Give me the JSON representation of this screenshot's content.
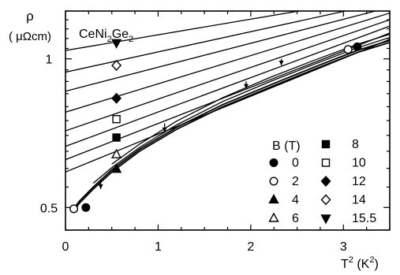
{
  "chart_data": {
    "type": "line",
    "title": "CeNi2Ge2",
    "title_main": "CeNi",
    "title_sub1": "2",
    "title_mid": "Ge",
    "title_sub2": "2",
    "ylabel_symbol": "ρ",
    "ylabel_unit": "( μΩcm)",
    "xlabel_text": "T",
    "xlabel_sup1": "2",
    "xlabel_mid": " (K",
    "xlabel_sup2": "2",
    "xlabel_end": ")",
    "xlim": [
      0,
      3.5
    ],
    "ylim": [
      0.45,
      1.25
    ],
    "y_scale": "log",
    "x_ticks": [
      {
        "value": 0,
        "label": "0"
      },
      {
        "value": 1,
        "label": "1"
      },
      {
        "value": 2,
        "label": "2"
      },
      {
        "value": 3,
        "label": "3"
      }
    ],
    "y_ticks": [
      {
        "value": 0.5,
        "label": "0.5"
      },
      {
        "value": 1,
        "label": "1"
      }
    ],
    "legend": {
      "title": "B (T)",
      "placement": "bottom-right",
      "entries": [
        {
          "label": "0",
          "marker": "filled-circle"
        },
        {
          "label": "2",
          "marker": "open-circle"
        },
        {
          "label": "4",
          "marker": "filled-triangle-up"
        },
        {
          "label": "6",
          "marker": "open-triangle-up"
        },
        {
          "label": "8",
          "marker": "filled-square"
        },
        {
          "label": "10",
          "marker": "open-square"
        },
        {
          "label": "12",
          "marker": "filled-diamond"
        },
        {
          "label": "14",
          "marker": "open-diamond"
        },
        {
          "label": "15.5",
          "marker": "filled-triangle-down"
        }
      ]
    },
    "series": [
      {
        "name": "0",
        "marker": "filled-circle",
        "points": [
          [
            0.22,
            0.5
          ],
          [
            3.15,
            1.058
          ]
        ]
      },
      {
        "name": "2",
        "marker": "open-circle",
        "points": [
          [
            0.09,
            0.497
          ],
          [
            3.05,
            1.045
          ]
        ]
      },
      {
        "name": "4",
        "marker": "filled-triangle-up",
        "points": [
          [
            0.55,
            0.598
          ]
        ]
      },
      {
        "name": "6",
        "marker": "open-triangle-up",
        "points": [
          [
            0.55,
            0.64
          ]
        ]
      },
      {
        "name": "8",
        "marker": "filled-square",
        "points": [
          [
            0.55,
            0.693
          ]
        ]
      },
      {
        "name": "10",
        "marker": "open-square",
        "points": [
          [
            0.55,
            0.755
          ]
        ]
      },
      {
        "name": "12",
        "marker": "filled-diamond",
        "points": [
          [
            0.55,
            0.832
          ]
        ]
      },
      {
        "name": "14",
        "marker": "open-diamond",
        "points": [
          [
            0.55,
            0.97
          ]
        ]
      },
      {
        "name": "15.5",
        "marker": "filled-triangle-down",
        "points": [
          [
            0.55,
            1.078
          ]
        ]
      }
    ],
    "fit_lines": [
      {
        "x0": 0,
        "y0": 1.04,
        "x1": 3.5,
        "y1": 1.343
      },
      {
        "x0": 0,
        "y0": 0.94,
        "x1": 3.5,
        "y1": 1.308
      },
      {
        "x0": 0,
        "y0": 0.86,
        "x1": 3.5,
        "y1": 1.272
      },
      {
        "x0": 0,
        "y0": 0.78,
        "x1": 3.5,
        "y1": 1.238
      },
      {
        "x0": 0,
        "y0": 0.715,
        "x1": 3.5,
        "y1": 1.2
      },
      {
        "x0": 0,
        "y0": 0.665,
        "x1": 3.5,
        "y1": 1.165
      },
      {
        "x0": 0,
        "y0": 0.625,
        "x1": 3.5,
        "y1": 1.128
      },
      {
        "x0": 0,
        "y0": 0.59,
        "x1": 3.5,
        "y1": 1.095
      }
    ],
    "envelope_curves": [
      {
        "x": [
          0.08,
          0.15,
          0.3,
          0.5,
          0.8,
          1.2,
          1.7,
          2.2,
          2.7,
          3.15,
          3.5
        ],
        "y": [
          0.49,
          0.51,
          0.545,
          0.59,
          0.65,
          0.72,
          0.8,
          0.875,
          0.955,
          1.03,
          1.08
        ]
      },
      {
        "x": [
          0.08,
          0.15,
          0.3,
          0.5,
          0.8,
          1.2,
          1.7,
          2.2,
          2.7,
          3.15,
          3.5
        ],
        "y": [
          0.495,
          0.515,
          0.55,
          0.596,
          0.656,
          0.727,
          0.808,
          0.884,
          0.965,
          1.04,
          1.09
        ]
      },
      {
        "x": [
          0.3,
          0.5,
          0.8,
          1.2,
          1.7,
          2.2,
          2.7,
          3.15,
          3.5
        ],
        "y": [
          0.56,
          0.602,
          0.662,
          0.735,
          0.82,
          0.898,
          0.978,
          1.053,
          1.105
        ]
      },
      {
        "x": [
          0.5,
          0.8,
          1.2,
          1.7,
          2.2,
          2.7,
          3.15,
          3.5
        ],
        "y": [
          0.612,
          0.672,
          0.748,
          0.835,
          0.916,
          0.996,
          1.07,
          1.122
        ]
      }
    ],
    "arrows": [
      {
        "x": 0.38,
        "y_from": 0.57,
        "y_to": 0.545
      },
      {
        "x": 1.07,
        "y_from": 0.74,
        "y_to": 0.71
      },
      {
        "x": 1.95,
        "y_from": 0.9,
        "y_to": 0.87
      },
      {
        "x": 2.33,
        "y_from": 1.0,
        "y_to": 0.97
      }
    ]
  }
}
